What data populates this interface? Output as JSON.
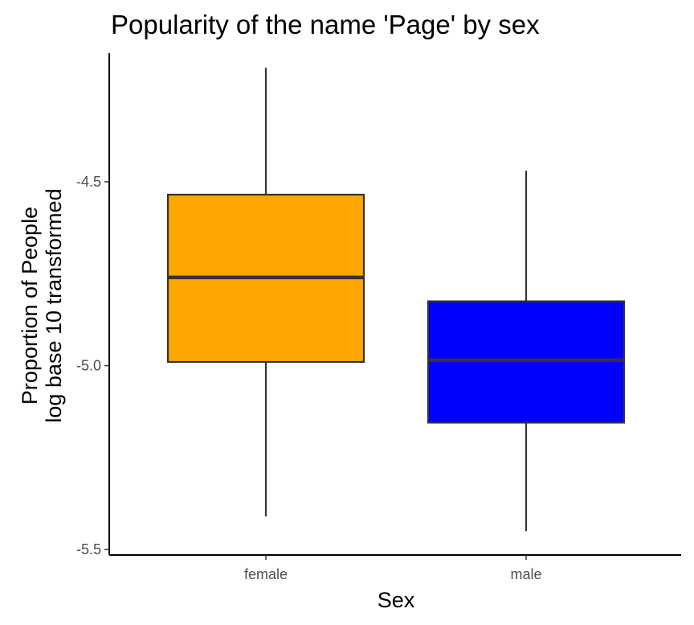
{
  "chart_data": {
    "type": "boxplot",
    "title": "Popularity of the name 'Page' by sex",
    "xlabel": "Sex",
    "ylabel_lines": [
      "Proportion of People",
      "log base 10 transformed"
    ],
    "categories": [
      "female",
      "male"
    ],
    "boxes": [
      {
        "category": "female",
        "whisker_low": -5.41,
        "q1": -4.99,
        "median": -4.76,
        "q3": -4.535,
        "whisker_high": -4.19,
        "fill": "#FFA500"
      },
      {
        "category": "male",
        "whisker_low": -5.45,
        "q1": -5.155,
        "median": -4.985,
        "q3": -4.825,
        "whisker_high": -4.47,
        "fill": "#0000FF"
      }
    ],
    "yticks": [
      -5.5,
      -5.0,
      -4.5
    ],
    "ytick_labels": [
      "-5.5",
      "-5.0",
      "-4.5"
    ],
    "ylim": [
      -5.515,
      -4.15
    ],
    "grid": false,
    "legend": "none"
  }
}
